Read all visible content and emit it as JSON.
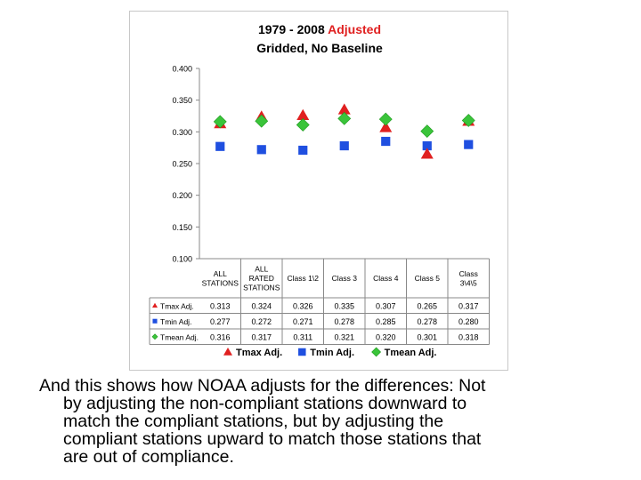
{
  "chart_data": {
    "type": "scatter",
    "title_part1": "1979 - 2008",
    "title_part2": "Adjusted",
    "subtitle": "Gridded, No Baseline",
    "ylim": [
      0.1,
      0.4
    ],
    "yticks": [
      "0.400",
      "0.350",
      "0.300",
      "0.250",
      "0.200",
      "0.150",
      "0.100"
    ],
    "grid": false,
    "legend_position": "bottom",
    "categories": [
      [
        "ALL",
        "STATIONS"
      ],
      [
        "ALL",
        "RATED",
        "STATIONS"
      ],
      [
        "Class 1\\2"
      ],
      [
        "Class 3"
      ],
      [
        "Class 4"
      ],
      [
        "Class 5"
      ],
      [
        "Class",
        "3\\4\\5"
      ]
    ],
    "series": [
      {
        "name": "Tmax Adj.",
        "legend_name": "Tmax Adj.",
        "color": "#e02020",
        "marker": "triangle",
        "values": [
          0.313,
          0.324,
          0.326,
          0.335,
          0.307,
          0.265,
          0.317
        ],
        "labels": [
          "0.313",
          "0.324",
          "0.326",
          "0.335",
          "0.307",
          "0.265",
          "0.317"
        ]
      },
      {
        "name": "Tmin Adj.",
        "legend_name": "Tmin Adj.",
        "color": "#1f4fe0",
        "marker": "square",
        "values": [
          0.277,
          0.272,
          0.271,
          0.278,
          0.285,
          0.278,
          0.28
        ],
        "labels": [
          "0.277",
          "0.272",
          "0.271",
          "0.278",
          "0.285",
          "0.278",
          "0.280"
        ]
      },
      {
        "name": "Tmean Adj.",
        "legend_name": "Tmean Adj.",
        "color": "#3ac43a",
        "marker": "diamond",
        "values": [
          0.316,
          0.317,
          0.311,
          0.321,
          0.32,
          0.301,
          0.318
        ],
        "labels": [
          "0.316",
          "0.317",
          "0.311",
          "0.321",
          "0.320",
          "0.301",
          "0.318"
        ]
      }
    ]
  },
  "caption": {
    "line1": "And this shows how NOAA adjusts for the differences: Not",
    "line2": "by adjusting the non-compliant stations downward to",
    "line3": "match the compliant stations, but by adjusting the",
    "line4": "compliant stations upward to match those stations that",
    "line5": "are out of compliance."
  }
}
